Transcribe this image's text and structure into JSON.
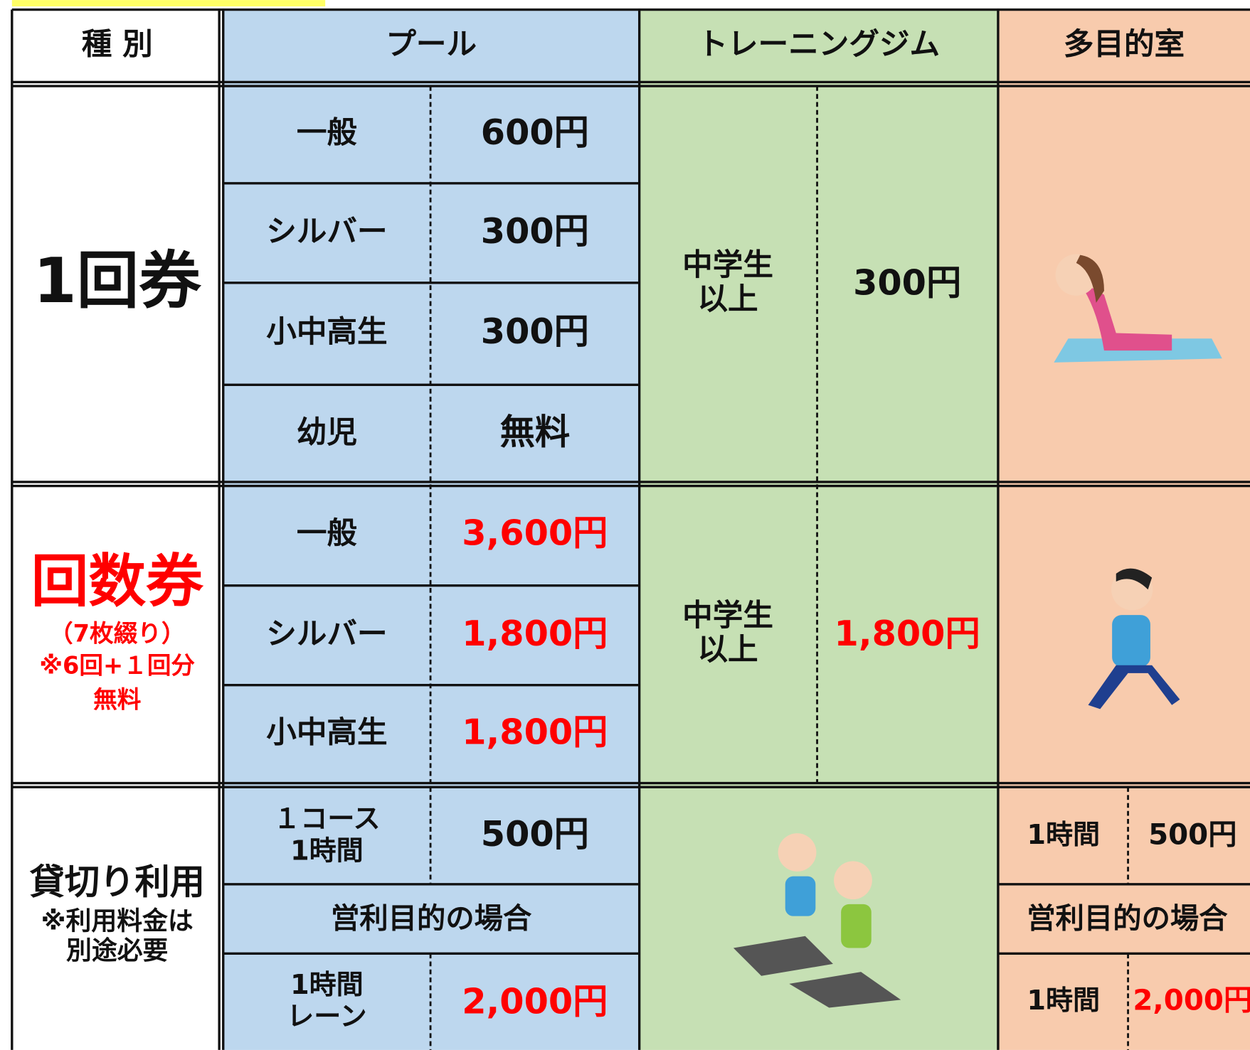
{
  "header": {
    "category": "種 別",
    "pool": "プール",
    "gym": "トレーニングジム",
    "room": "多目的室"
  },
  "single": {
    "label": "1回券",
    "pool": [
      {
        "who": "一般",
        "price": "600円"
      },
      {
        "who": "シルバー",
        "price": "300円"
      },
      {
        "who": "小中高生",
        "price": "300円"
      },
      {
        "who": "幼児",
        "price": "無料"
      }
    ],
    "gym": {
      "who": [
        "中学生",
        "以上"
      ],
      "price": "300円"
    }
  },
  "coupon": {
    "label": "回数券",
    "notes": [
      "（7枚綴り）",
      "※6回+１回分",
      "無料"
    ],
    "pool": [
      {
        "who": "一般",
        "price": "3,600円"
      },
      {
        "who": "シルバー",
        "price": "1,800円"
      },
      {
        "who": "小中高生",
        "price": "1,800円"
      }
    ],
    "gym": {
      "who": [
        "中学生",
        "以上"
      ],
      "price": "1,800円"
    }
  },
  "rental": {
    "label": "貸切り利用",
    "notes": [
      "※利用料金は",
      "別途必要"
    ],
    "pool": {
      "course": {
        "who": [
          "１コース",
          "1時間"
        ],
        "price": "500円"
      },
      "commercial": "営利目的の場合",
      "lane": {
        "who": [
          "1時間",
          "レーン"
        ],
        "price": "2,000円"
      }
    },
    "room": {
      "hour": {
        "who": "1時間",
        "price": "500円"
      },
      "commercial": "営利目的の場合",
      "commercial_hour": {
        "who": "1時間",
        "price": "2,000円"
      }
    }
  }
}
